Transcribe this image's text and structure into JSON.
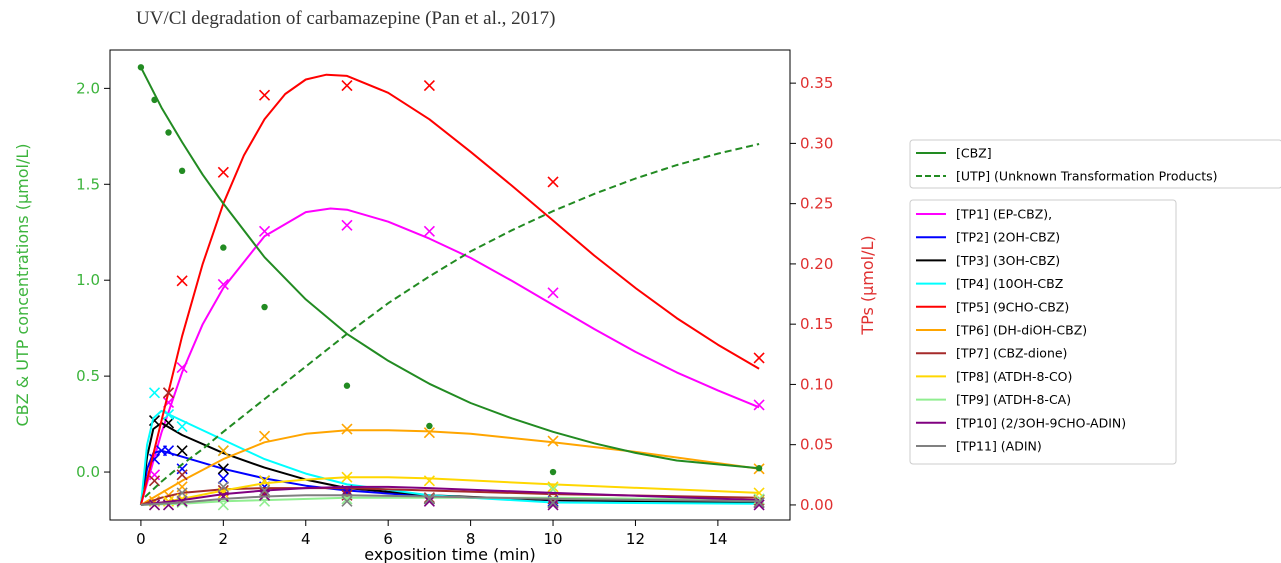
{
  "chart_data": {
    "type": "line",
    "title": "UV/Cl degradation of carbamazepine (Pan et al., 2017)",
    "xlabel": "exposition time (min)",
    "ylabel_left": "CBZ & UTP concentrations (µmol/L)",
    "ylabel_right": "TPs (µmol/L)",
    "xlim": [
      -0.75,
      15.75
    ],
    "ylim_left": [
      -0.25,
      2.2
    ],
    "ylim_right": [
      -0.0125,
      0.3775
    ],
    "xticks": [
      0,
      2,
      4,
      6,
      8,
      10,
      12,
      14
    ],
    "xtick_labels": [
      "0",
      "2",
      "4",
      "6",
      "8",
      "10",
      "12",
      "14"
    ],
    "yticks_left": [
      0.0,
      0.5,
      1.0,
      1.5,
      2.0
    ],
    "ytick_labels_left": [
      "0.0",
      "0.5",
      "1.0",
      "1.5",
      "2.0"
    ],
    "yticks_right": [
      0.0,
      0.05,
      0.1,
      0.15,
      0.2,
      0.25,
      0.3,
      0.35
    ],
    "ytick_labels_right": [
      "0.00",
      "0.05",
      "0.10",
      "0.15",
      "0.20",
      "0.25",
      "0.30",
      "0.35"
    ],
    "grid": false,
    "legend_placement": "outside-right",
    "legend_left": [
      {
        "label": "[CBZ]",
        "color": "#228B22",
        "dash": false
      },
      {
        "label": "[UTP] (Unknown Transformation Products)",
        "color": "#228B22",
        "dash": true
      }
    ],
    "legend_right": [
      {
        "label": "[TP1] (EP-CBZ),",
        "color": "#ff00ff"
      },
      {
        "label": "[TP2] (2OH-CBZ)",
        "color": "#0000ff"
      },
      {
        "label": "[TP3] (3OH-CBZ)",
        "color": "#000000"
      },
      {
        "label": "[TP4] (10OH-CBZ",
        "color": "#00ffff"
      },
      {
        "label": "[TP5] (9CHO-CBZ)",
        "color": "#ff0000"
      },
      {
        "label": "[TP6] (DH-diOH-CBZ)",
        "color": "#ffa500"
      },
      {
        "label": "[TP7] (CBZ-dione)",
        "color": "#a52a2a"
      },
      {
        "label": "[TP8] (ATDH-8-CO)",
        "color": "#ffd700"
      },
      {
        "label": "[TP9] (ATDH-8-CA)",
        "color": "#90ee90"
      },
      {
        "label": "[TP10] (2/3OH-9CHO-ADIN)",
        "color": "#800080"
      },
      {
        "label": "[TP11] (ADIN)",
        "color": "#808080"
      }
    ],
    "series_left": [
      {
        "id": "cbz",
        "color": "#228B22",
        "dash": false,
        "marker": "dot",
        "x": [
          0,
          0.33,
          0.67,
          1,
          2,
          3,
          5,
          7,
          10,
          15
        ],
        "points": [
          2.11,
          1.94,
          1.77,
          1.57,
          1.17,
          0.86,
          0.45,
          0.24,
          0.0,
          0.02
        ],
        "fit": [
          [
            0,
            2.11
          ],
          [
            0.5,
            1.9
          ],
          [
            1,
            1.72
          ],
          [
            1.5,
            1.55
          ],
          [
            2,
            1.4
          ],
          [
            3,
            1.12
          ],
          [
            4,
            0.9
          ],
          [
            5,
            0.72
          ],
          [
            6,
            0.58
          ],
          [
            7,
            0.46
          ],
          [
            8,
            0.36
          ],
          [
            9,
            0.28
          ],
          [
            10,
            0.21
          ],
          [
            11,
            0.15
          ],
          [
            12,
            0.1
          ],
          [
            13,
            0.06
          ],
          [
            14,
            0.04
          ],
          [
            15,
            0.02
          ]
        ]
      },
      {
        "id": "utp",
        "color": "#228B22",
        "dash": true,
        "marker": "none",
        "fit": [
          [
            0.1,
            -0.13
          ],
          [
            0.5,
            -0.05
          ],
          [
            1,
            0.04
          ],
          [
            1.5,
            0.12
          ],
          [
            2,
            0.21
          ],
          [
            3,
            0.38
          ],
          [
            4,
            0.55
          ],
          [
            5,
            0.72
          ],
          [
            6,
            0.88
          ],
          [
            7,
            1.02
          ],
          [
            8,
            1.15
          ],
          [
            9,
            1.26
          ],
          [
            10,
            1.36
          ],
          [
            11,
            1.45
          ],
          [
            12,
            1.53
          ],
          [
            13,
            1.6
          ],
          [
            14,
            1.66
          ],
          [
            15,
            1.71
          ]
        ]
      }
    ],
    "series_right": [
      {
        "id": "tp1",
        "color": "#ff00ff",
        "x": [
          0.33,
          0.67,
          1,
          2,
          3,
          5,
          7,
          10,
          15
        ],
        "points": [
          0.025,
          0.085,
          0.114,
          0.183,
          0.227,
          0.232,
          0.227,
          0.176,
          0.083
        ],
        "fit": [
          [
            0,
            0
          ],
          [
            0.5,
            0.06
          ],
          [
            1,
            0.11
          ],
          [
            1.5,
            0.15
          ],
          [
            2,
            0.18
          ],
          [
            3,
            0.223
          ],
          [
            4,
            0.243
          ],
          [
            4.6,
            0.246
          ],
          [
            5,
            0.245
          ],
          [
            6,
            0.235
          ],
          [
            7,
            0.221
          ],
          [
            8,
            0.205
          ],
          [
            9,
            0.186
          ],
          [
            10,
            0.166
          ],
          [
            11,
            0.146
          ],
          [
            12,
            0.127
          ],
          [
            13,
            0.11
          ],
          [
            14,
            0.095
          ],
          [
            15,
            0.081
          ]
        ]
      },
      {
        "id": "tp2",
        "color": "#0000ff",
        "x": [
          0.33,
          0.5,
          0.67,
          1,
          2,
          3,
          5,
          7,
          10,
          15
        ],
        "points": [
          0.038,
          0.045,
          0.045,
          0.03,
          0.022,
          0.015,
          0.01,
          0.005,
          0.003,
          0.002
        ],
        "fit": [
          [
            0,
            0
          ],
          [
            0.15,
            0.03
          ],
          [
            0.3,
            0.043
          ],
          [
            0.5,
            0.045
          ],
          [
            1,
            0.04
          ],
          [
            2,
            0.03
          ],
          [
            3,
            0.022
          ],
          [
            4,
            0.016
          ],
          [
            5,
            0.012
          ],
          [
            7,
            0.007
          ],
          [
            10,
            0.004
          ],
          [
            15,
            0.002
          ]
        ]
      },
      {
        "id": "tp3",
        "color": "#000000",
        "x": [
          0.33,
          0.67,
          1,
          2,
          3,
          5,
          7,
          10,
          15
        ],
        "points": [
          0.07,
          0.068,
          0.045,
          0.03,
          0.02,
          0.012,
          0.005,
          0.002,
          0.002
        ],
        "fit": [
          [
            0,
            0
          ],
          [
            0.15,
            0.04
          ],
          [
            0.3,
            0.063
          ],
          [
            0.5,
            0.068
          ],
          [
            1,
            0.058
          ],
          [
            2,
            0.043
          ],
          [
            3,
            0.031
          ],
          [
            4,
            0.021
          ],
          [
            5,
            0.014
          ],
          [
            7,
            0.008
          ],
          [
            10,
            0.004
          ],
          [
            15,
            0.002
          ]
        ]
      },
      {
        "id": "tp4",
        "color": "#00ffff",
        "x": [
          0.33,
          0.67,
          1,
          2
        ],
        "points": [
          0.093,
          0.075,
          0.065,
          0.045
        ],
        "fit": [
          [
            0,
            0
          ],
          [
            0.15,
            0.05
          ],
          [
            0.3,
            0.072
          ],
          [
            0.5,
            0.078
          ],
          [
            1,
            0.07
          ],
          [
            2,
            0.054
          ],
          [
            3,
            0.038
          ],
          [
            4,
            0.026
          ],
          [
            5,
            0.017
          ],
          [
            7,
            0.008
          ],
          [
            10,
            0.002
          ],
          [
            15,
            0.001
          ]
        ]
      },
      {
        "id": "tp5",
        "color": "#ff0000",
        "x": [
          0.67,
          1,
          2,
          3,
          5,
          7,
          10,
          15
        ],
        "points": [
          0.093,
          0.186,
          0.276,
          0.34,
          0.348,
          0.348,
          0.268,
          0.122
        ],
        "fit": [
          [
            0,
            0
          ],
          [
            0.5,
            0.07
          ],
          [
            1,
            0.14
          ],
          [
            1.5,
            0.2
          ],
          [
            2,
            0.25
          ],
          [
            2.5,
            0.29
          ],
          [
            3,
            0.32
          ],
          [
            3.5,
            0.341
          ],
          [
            4,
            0.353
          ],
          [
            4.5,
            0.357
          ],
          [
            5,
            0.356
          ],
          [
            6,
            0.342
          ],
          [
            7,
            0.32
          ],
          [
            8,
            0.293
          ],
          [
            9,
            0.265
          ],
          [
            10,
            0.236
          ],
          [
            11,
            0.207
          ],
          [
            12,
            0.18
          ],
          [
            13,
            0.155
          ],
          [
            14,
            0.133
          ],
          [
            15,
            0.113
          ]
        ]
      },
      {
        "id": "tp6",
        "color": "#ffa500",
        "x": [
          0.33,
          0.67,
          1,
          2,
          3,
          5,
          7,
          10,
          15
        ],
        "points": [
          0.003,
          0.008,
          0.015,
          0.045,
          0.057,
          0.063,
          0.06,
          0.053,
          0.03
        ],
        "fit": [
          [
            0,
            0
          ],
          [
            0.5,
            0.01
          ],
          [
            1,
            0.02
          ],
          [
            2,
            0.038
          ],
          [
            3,
            0.052
          ],
          [
            4,
            0.059
          ],
          [
            5,
            0.062
          ],
          [
            6,
            0.062
          ],
          [
            7,
            0.061
          ],
          [
            8,
            0.059
          ],
          [
            10,
            0.052
          ],
          [
            12,
            0.044
          ],
          [
            15,
            0.03
          ]
        ]
      },
      {
        "id": "tp7",
        "color": "#a52a2a",
        "x": [
          0.33,
          0.67,
          1,
          2,
          3,
          5,
          7,
          10,
          15
        ],
        "points": [
          0.02,
          0.093,
          0.025,
          0.012,
          0.01,
          0.008,
          0.006,
          0.005,
          0.004
        ],
        "fit": [
          [
            0,
            0
          ],
          [
            0.5,
            0.006
          ],
          [
            1,
            0.01
          ],
          [
            2,
            0.013
          ],
          [
            3,
            0.014
          ],
          [
            5,
            0.014
          ],
          [
            7,
            0.012
          ],
          [
            10,
            0.009
          ],
          [
            15,
            0.006
          ]
        ]
      },
      {
        "id": "tp8",
        "color": "#ffd700",
        "x": [
          0.33,
          0.67,
          1,
          2,
          3,
          5,
          7,
          10,
          15
        ],
        "points": [
          0.0,
          0.003,
          0.005,
          0.01,
          0.02,
          0.023,
          0.02,
          0.015,
          0.01
        ],
        "fit": [
          [
            0,
            0
          ],
          [
            0.5,
            0.002
          ],
          [
            1,
            0.005
          ],
          [
            2,
            0.012
          ],
          [
            3,
            0.018
          ],
          [
            4,
            0.021
          ],
          [
            5,
            0.023
          ],
          [
            6,
            0.023
          ],
          [
            7,
            0.022
          ],
          [
            10,
            0.017
          ],
          [
            15,
            0.01
          ]
        ]
      },
      {
        "id": "tp9",
        "color": "#90ee90",
        "x": [
          0.33,
          0.67,
          1,
          2,
          3,
          5,
          7,
          10,
          15
        ],
        "points": [
          0.0,
          0.0,
          0.002,
          0.0,
          0.003,
          0.005,
          0.005,
          0.013,
          0.005
        ],
        "fit": [
          [
            0,
            0
          ],
          [
            1,
            0.001
          ],
          [
            2,
            0.003
          ],
          [
            3,
            0.004
          ],
          [
            5,
            0.006
          ],
          [
            7,
            0.006
          ],
          [
            10,
            0.006
          ],
          [
            15,
            0.004
          ]
        ]
      },
      {
        "id": "tp10",
        "color": "#800080",
        "x": [
          0.33,
          0.67,
          1,
          2,
          3,
          5,
          7,
          10,
          15
        ],
        "points": [
          0.0,
          0.0,
          0.003,
          0.007,
          0.008,
          0.012,
          0.003,
          0.0,
          0.0
        ],
        "fit": [
          [
            0,
            0
          ],
          [
            1,
            0.004
          ],
          [
            2,
            0.009
          ],
          [
            3,
            0.012
          ],
          [
            4,
            0.014
          ],
          [
            5,
            0.015
          ],
          [
            6,
            0.015
          ],
          [
            7,
            0.014
          ],
          [
            10,
            0.01
          ],
          [
            15,
            0.004
          ]
        ]
      },
      {
        "id": "tp11",
        "color": "#808080",
        "x": [
          1,
          2,
          3,
          5,
          7,
          10,
          15
        ],
        "points": [
          0.01,
          0.015,
          0.012,
          0.003,
          0.005,
          0.002,
          0.002
        ],
        "fit": [
          [
            0,
            0
          ],
          [
            1,
            0.002
          ],
          [
            2,
            0.005
          ],
          [
            3,
            0.007
          ],
          [
            4,
            0.008
          ],
          [
            5,
            0.008
          ],
          [
            7,
            0.007
          ],
          [
            10,
            0.005
          ],
          [
            15,
            0.003
          ]
        ]
      }
    ]
  }
}
